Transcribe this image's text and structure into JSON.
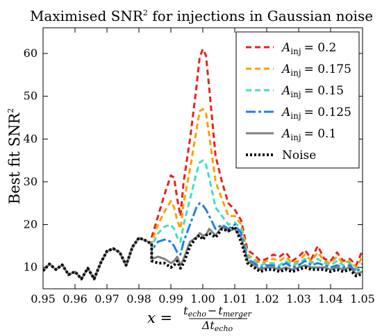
{
  "chart_data": {
    "type": "line",
    "title_main": "Maximised SNR",
    "title_sup": "2",
    "title_rest": " for injections in Gaussian noise",
    "ylabel_main": "Best fit SNR",
    "ylabel_sup": "2",
    "xlabel": {
      "lhs": "x =",
      "num_a": "t",
      "num_a_sub": "echo",
      "minus": "−",
      "num_b": "t",
      "num_b_sub": "merger",
      "den": "Δt",
      "den_sub": "echo"
    },
    "xlim": [
      0.95,
      1.05
    ],
    "ylim": [
      5,
      66
    ],
    "xticks": [
      "0.95",
      "0.96",
      "0.97",
      "0.98",
      "0.99",
      "1.00",
      "1.01",
      "1.02",
      "1.03",
      "1.04",
      "1.05"
    ],
    "yticks": [
      "10",
      "20",
      "30",
      "40",
      "50",
      "60"
    ],
    "legend_position": "top-right",
    "legend_prefix": "A",
    "legend_sub": "inj",
    "base": {
      "x": [
        0.95,
        0.952,
        0.954,
        0.956,
        0.958,
        0.96,
        0.962,
        0.964,
        0.966,
        0.968,
        0.97,
        0.972,
        0.974,
        0.976,
        0.978,
        0.98,
        0.982,
        0.984
      ],
      "y": [
        9.2,
        10.8,
        9.5,
        10.6,
        8.3,
        9.0,
        7.3,
        9.8,
        7.3,
        11.0,
        13.8,
        14.4,
        13.5,
        10.5,
        14.8,
        16.9,
        16.3,
        15.5
      ]
    },
    "series": [
      {
        "name": "= 0.2",
        "color": "#e8211d",
        "dash": "8,5",
        "width": 3,
        "x": [
          0.984,
          0.986,
          0.988,
          0.99,
          0.991,
          0.992,
          0.993,
          0.994,
          0.996,
          0.998,
          0.999,
          1.0,
          1.001,
          1.002,
          1.004,
          1.006,
          1.008,
          1.01,
          1.012,
          1.014,
          1.016,
          1.018,
          1.02,
          1.022,
          1.024,
          1.026,
          1.028,
          1.03,
          1.032,
          1.034,
          1.036,
          1.038,
          1.04,
          1.042,
          1.044,
          1.046,
          1.048,
          1.05
        ],
        "y": [
          17,
          22,
          27,
          31.5,
          31,
          26,
          22,
          30,
          40,
          52,
          59,
          61,
          59.5,
          52,
          36,
          30,
          25,
          23.5,
          21,
          14,
          13,
          11.5,
          12,
          13,
          12.5,
          13.5,
          11.5,
          12.5,
          14,
          12,
          15,
          12,
          11.5,
          13.5,
          11.5,
          12,
          10.5,
          14
        ]
      },
      {
        "name": "= 0.175",
        "color": "#ff9e00",
        "dash": "8,5",
        "width": 3,
        "x": [
          0.984,
          0.986,
          0.988,
          0.99,
          0.991,
          0.992,
          0.993,
          0.994,
          0.996,
          0.998,
          0.999,
          1.0,
          1.001,
          1.002,
          1.004,
          1.006,
          1.008,
          1.01,
          1.012,
          1.014,
          1.016,
          1.018,
          1.02,
          1.022,
          1.024,
          1.026,
          1.028,
          1.03,
          1.032,
          1.034,
          1.036,
          1.038,
          1.04,
          1.042,
          1.044,
          1.046,
          1.048,
          1.05
        ],
        "y": [
          16,
          20,
          23,
          25.5,
          24,
          21,
          19,
          25,
          33,
          42,
          46.5,
          47,
          46,
          41,
          30,
          26,
          22,
          22,
          20,
          13,
          12,
          11,
          11.5,
          12,
          11.5,
          12.5,
          11,
          11.5,
          13,
          11.5,
          13.5,
          11.5,
          11,
          12.5,
          11,
          11.5,
          10,
          12.5
        ]
      },
      {
        "name": "= 0.15",
        "color": "#3ce0c0",
        "dash": "8,5",
        "width": 3,
        "x": [
          0.984,
          0.986,
          0.988,
          0.99,
          0.991,
          0.992,
          0.993,
          0.994,
          0.996,
          0.998,
          0.999,
          1.0,
          1.001,
          1.002,
          1.004,
          1.006,
          1.008,
          1.01,
          1.012,
          1.014,
          1.016,
          1.018,
          1.02,
          1.022,
          1.024,
          1.026,
          1.028,
          1.03,
          1.032,
          1.034,
          1.036,
          1.038,
          1.04,
          1.042,
          1.044,
          1.046,
          1.048,
          1.05
        ],
        "y": [
          15,
          18,
          19.5,
          20,
          19,
          17,
          16,
          20,
          26,
          32,
          34.5,
          35,
          34,
          31,
          24,
          22,
          20,
          20.5,
          19,
          12.5,
          11.5,
          10.5,
          11,
          11,
          10.5,
          11.5,
          10.5,
          11,
          12,
          11,
          12,
          11,
          10.5,
          11.5,
          10.5,
          11,
          9.5,
          11
        ]
      },
      {
        "name": "= 0.125",
        "color": "#1f7fe8",
        "dash": "14,4,4,4",
        "width": 3,
        "x": [
          0.984,
          0.986,
          0.988,
          0.99,
          0.991,
          0.992,
          0.993,
          0.994,
          0.996,
          0.998,
          0.999,
          1.0,
          1.001,
          1.002,
          1.004,
          1.006,
          1.008,
          1.01,
          1.012,
          1.014,
          1.016,
          1.018,
          1.02,
          1.022,
          1.024,
          1.026,
          1.028,
          1.03,
          1.032,
          1.034,
          1.036,
          1.038,
          1.04,
          1.042,
          1.044,
          1.046,
          1.048,
          1.05
        ],
        "y": [
          14,
          16,
          16.5,
          16,
          15,
          13.5,
          13,
          16,
          20,
          24,
          25,
          24.5,
          23.5,
          22,
          19,
          20,
          19,
          20,
          18,
          12,
          11,
          10,
          10.5,
          10.5,
          10,
          11,
          10,
          10.5,
          11.5,
          10.5,
          11,
          10.5,
          10,
          10.5,
          10,
          10.5,
          9,
          10
        ]
      },
      {
        "name": "= 0.1",
        "color": "#808080",
        "dash": "",
        "width": 3,
        "x": [
          0.984,
          0.986,
          0.988,
          0.99,
          0.991,
          0.992,
          0.993,
          0.994,
          0.996,
          0.998,
          0.999,
          1.0,
          1.001,
          1.002,
          1.004,
          1.006,
          1.008,
          1.01,
          1.012,
          1.014,
          1.016,
          1.018,
          1.02,
          1.022,
          1.024,
          1.026,
          1.028,
          1.03,
          1.032,
          1.034,
          1.036,
          1.038,
          1.04,
          1.042,
          1.044,
          1.046,
          1.048,
          1.05
        ],
        "y": [
          12,
          12.5,
          12,
          11,
          11.5,
          12.5,
          10.5,
          12,
          16,
          17,
          18,
          17.5,
          17.5,
          19,
          17.5,
          19.5,
          18.5,
          19,
          17,
          11.5,
          10.5,
          9.5,
          10,
          10,
          9.5,
          10,
          9.5,
          10,
          10.5,
          10,
          10,
          10,
          9.5,
          10,
          9.5,
          10,
          8.5,
          9
        ]
      },
      {
        "name": "Noise",
        "color": "#000000",
        "dash": "3,3",
        "width": 4,
        "x": [
          0.984,
          0.986,
          0.988,
          0.99,
          0.991,
          0.992,
          0.993,
          0.994,
          0.996,
          0.998,
          0.999,
          1.0,
          1.001,
          1.002,
          1.004,
          1.006,
          1.008,
          1.01,
          1.012,
          1.014,
          1.016,
          1.018,
          1.02,
          1.022,
          1.024,
          1.026,
          1.028,
          1.03,
          1.032,
          1.034,
          1.036,
          1.038,
          1.04,
          1.042,
          1.044,
          1.046,
          1.048,
          1.05
        ],
        "y": [
          11.5,
          11,
          11,
          10,
          10.5,
          11.5,
          9.8,
          11,
          15,
          17,
          17.5,
          16.5,
          17.5,
          18,
          17,
          19,
          18.5,
          19.5,
          16,
          11,
          10,
          9,
          9.5,
          9.5,
          9,
          9.5,
          9,
          9.5,
          10,
          9.5,
          9.5,
          9.5,
          9,
          9.5,
          9,
          9.5,
          8,
          8.5
        ]
      }
    ]
  }
}
